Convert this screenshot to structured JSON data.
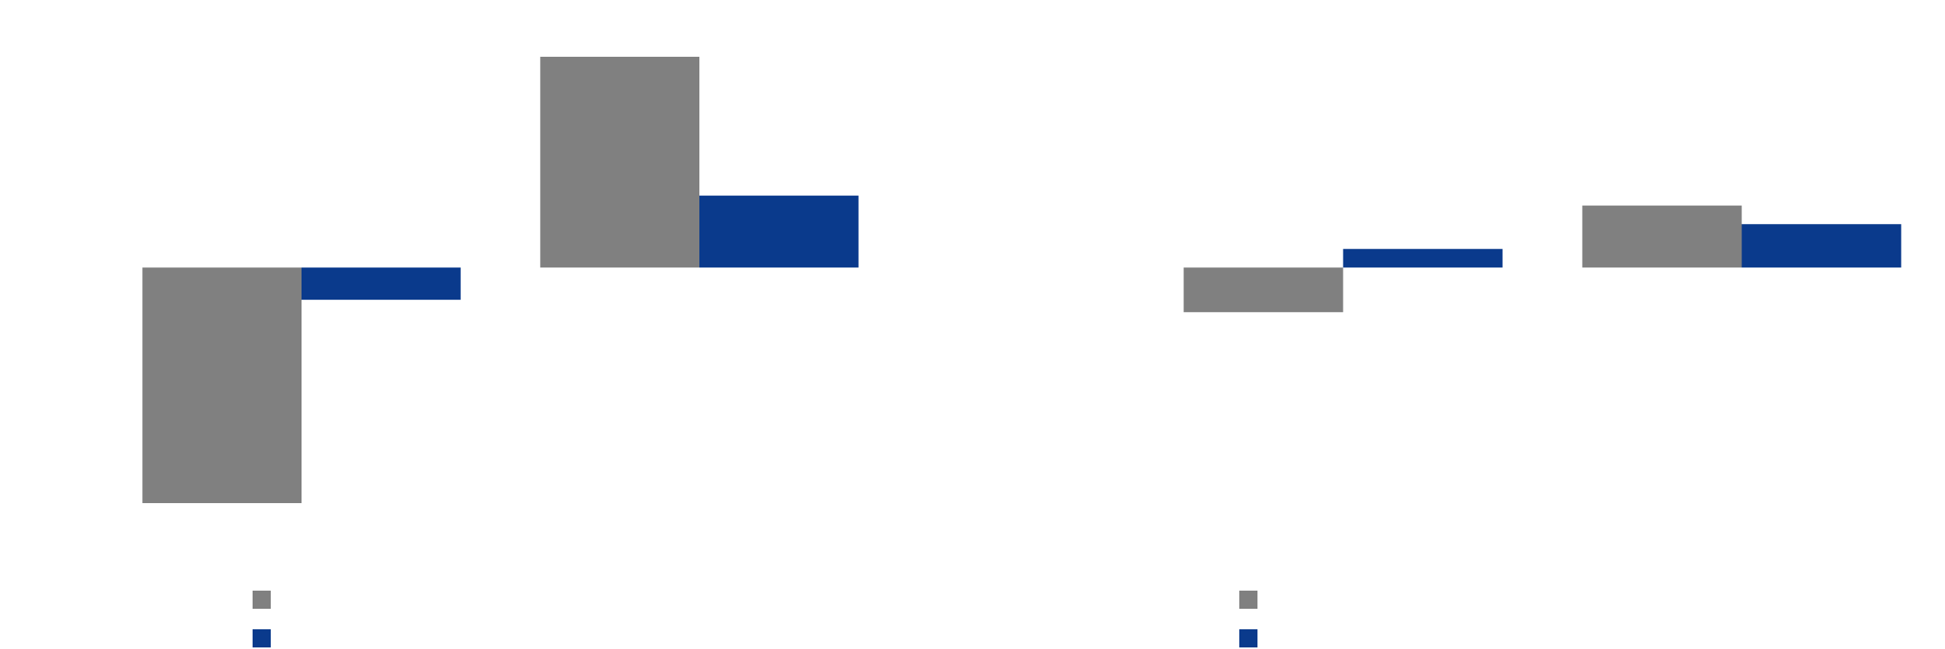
{
  "chart_data": [
    {
      "type": "bar",
      "categories": [
        null,
        null
      ],
      "series": [
        {
          "color": "#808080",
          "values": [
            -190,
            170
          ]
        },
        {
          "color": "#0a3a8c",
          "values": [
            -26,
            58
          ]
        }
      ],
      "ylim": [
        -190,
        170
      ]
    },
    {
      "type": "bar",
      "categories": [
        null,
        null
      ],
      "series": [
        {
          "color": "#808080",
          "values": [
            -36,
            50
          ]
        },
        {
          "color": "#0a3a8c",
          "values": [
            15,
            35
          ]
        }
      ],
      "ylim": [
        -190,
        170
      ]
    }
  ]
}
